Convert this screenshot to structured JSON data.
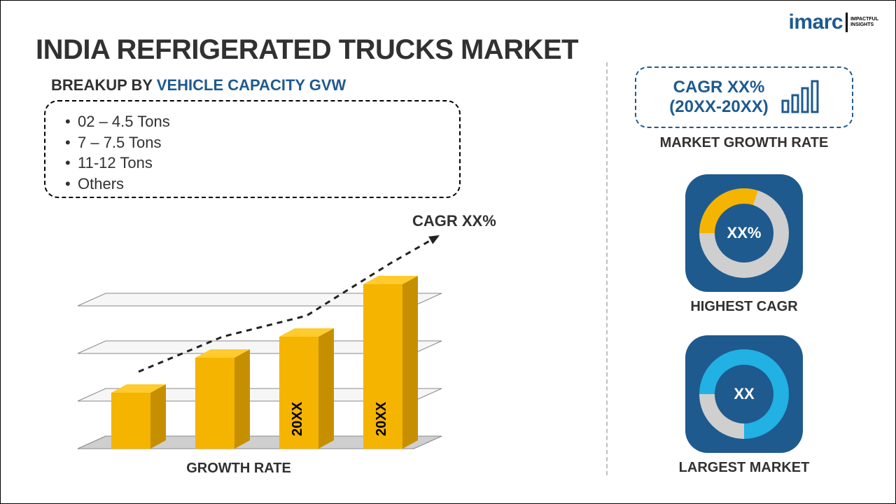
{
  "logo": {
    "main": "imarc",
    "sub_top": "IMPACTFUL",
    "sub_bottom": "INSIGHTS"
  },
  "title": "INDIA REFRIGERATED TRUCKS MARKET",
  "subtitle_prefix": "BREAKUP BY ",
  "subtitle_highlight": "VEHICLE CAPACITY GVW",
  "categories": [
    "02 – 4.5 Tons",
    "7 – 7.5 Tons",
    "11-12 Tons",
    "Others"
  ],
  "growth_chart": {
    "type": "bar",
    "perspective_3d": true,
    "bar_values": [
      80,
      130,
      160,
      235
    ],
    "bar_labels": [
      "",
      "",
      "20XX",
      "20XX"
    ],
    "bar_color": "#f5b400",
    "bar_top_color": "#ffcb2e",
    "bar_side_color": "#c68f00",
    "plane_fill": "#cfcfcf",
    "plane_stroke": "#888888",
    "trend_line": {
      "dash": "8,7",
      "stroke": "#222222",
      "width": 3
    },
    "cagr_text": "CAGR XX%",
    "axis_label": "GROWTH RATE"
  },
  "right": {
    "cagr_box": {
      "line1": "CAGR XX%",
      "line2": "(20XX-20XX)",
      "label": "MARKET GROWTH RATE",
      "icon_color": "#1e5a8e"
    },
    "highest_cagr": {
      "label": "HIGHEST CAGR",
      "center": "XX%",
      "card_bg": "#1e5a8e",
      "ring_bg": "#cfcfcf",
      "ring_arc_color": "#f5b400",
      "ring_arc_pct": 30,
      "hole_bg": "#1e5a8e"
    },
    "largest_market": {
      "label": "LARGEST MARKET",
      "center": "XX",
      "card_bg": "#1e5a8e",
      "ring_bg": "#cfcfcf",
      "ring_arc_color": "#21b1e2",
      "ring_arc_pct": 75,
      "hole_bg": "#1e5a8e"
    }
  }
}
